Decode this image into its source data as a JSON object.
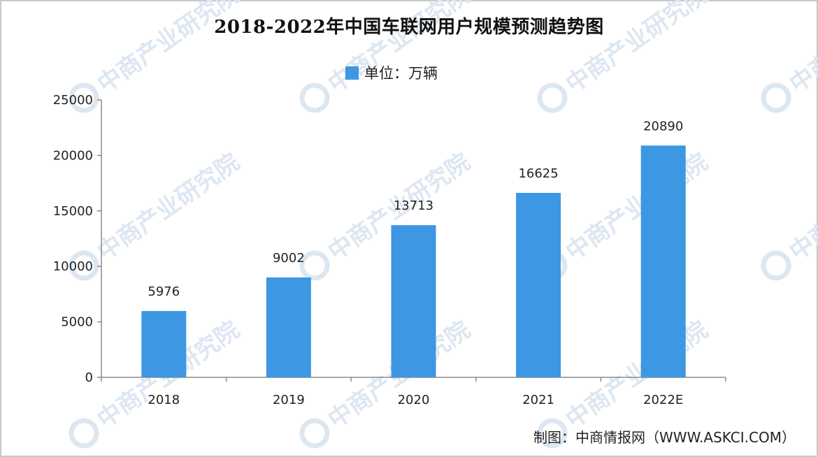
{
  "watermark": {
    "text": "中商产业研究院",
    "color": "#dde7f2"
  },
  "chart_data": {
    "type": "bar",
    "title": "2018-2022年中国车联网用户规模预测趋势图",
    "legend": {
      "label": "单位：万辆",
      "placement": "top-center"
    },
    "categories": [
      "2018",
      "2019",
      "2020",
      "2021",
      "2022E"
    ],
    "values": [
      5976,
      9002,
      13713,
      16625,
      20890
    ],
    "data_labels": [
      "5976",
      "9002",
      "13713",
      "16625",
      "20890"
    ],
    "ylim": [
      0,
      25000
    ],
    "yticks": [
      0,
      5000,
      10000,
      15000,
      20000,
      25000
    ],
    "ytick_labels": [
      "0",
      "5000",
      "10000",
      "15000",
      "20000",
      "25000"
    ],
    "grid": false,
    "bar_color": "#3d97e3",
    "axis_color": "#8c8c8c",
    "source": "制图：中商情报网（WWW.ASKCI.COM）"
  }
}
